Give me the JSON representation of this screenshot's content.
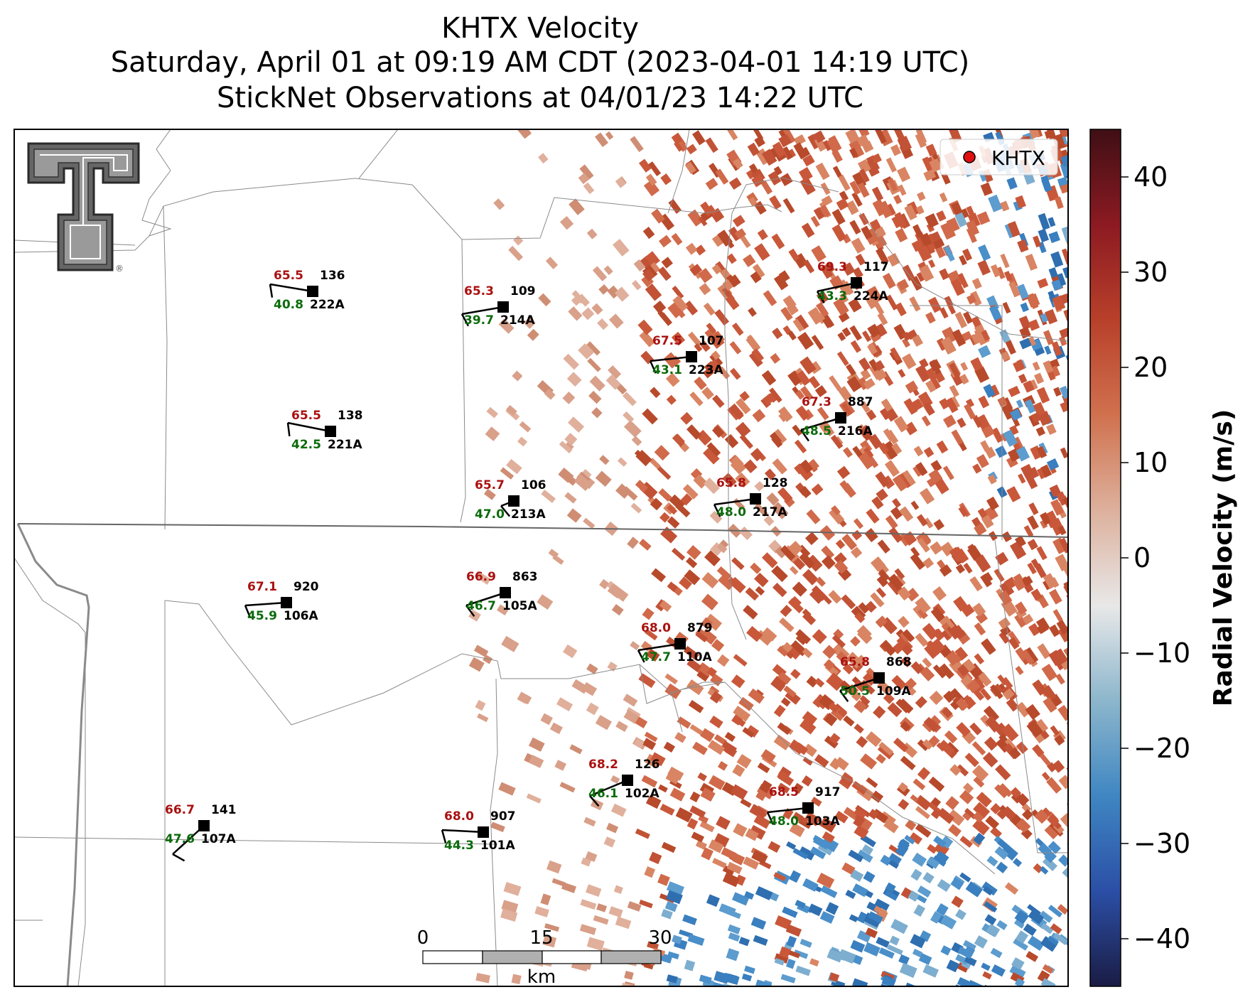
{
  "header": {
    "title_line1": "KHTX Velocity",
    "title_line2": "Saturday, April 01 at 09:19 AM CDT (2023-04-01 14:19 UTC)",
    "title_line3": "StickNet Observations at 04/01/23 14:22 UTC"
  },
  "legend": {
    "label": "KHTX",
    "marker_color": "#e01010"
  },
  "colorbar": {
    "label": "Radial Velocity (m/s)",
    "min": -45,
    "max": 45,
    "ticks": [
      40,
      30,
      20,
      10,
      0,
      -10,
      -20,
      -30,
      -40
    ],
    "tick_labels": [
      "40",
      "30",
      "20",
      "10",
      "0",
      "−10",
      "−20",
      "−30",
      "−40"
    ],
    "colors": [
      "#1a1c44",
      "#2b4fa6",
      "#3f86c2",
      "#8cb6cc",
      "#e8e8e8",
      "#ddb09c",
      "#d0714e",
      "#b8402a",
      "#8c1a22",
      "#3f0f15"
    ]
  },
  "scalebar": {
    "labels": [
      "0",
      "15",
      "30"
    ],
    "unit": "km"
  },
  "logo": {
    "name": "Texas Tech Double T",
    "mark": "®"
  },
  "stations": [
    {
      "id": "222A",
      "temp": "65.5",
      "dew": "40.8",
      "dir": "136"
    },
    {
      "id": "214A",
      "temp": "65.3",
      "dew": "39.7",
      "dir": "109"
    },
    {
      "id": "223A",
      "temp": "67.5",
      "dew": "43.1",
      "dir": "107"
    },
    {
      "id": "224A",
      "temp": "69.3",
      "dew": "43.3",
      "dir": "117"
    },
    {
      "id": "221A",
      "temp": "65.5",
      "dew": "42.5",
      "dir": "138"
    },
    {
      "id": "216A",
      "temp": "67.3",
      "dew": "48.5",
      "dir": "887"
    },
    {
      "id": "213A",
      "temp": "65.7",
      "dew": "47.0",
      "dir": "106"
    },
    {
      "id": "217A",
      "temp": "65.8",
      "dew": "48.0",
      "dir": "128"
    },
    {
      "id": "106A",
      "temp": "67.1",
      "dew": "45.9",
      "dir": "920"
    },
    {
      "id": "105A",
      "temp": "66.9",
      "dew": "46.7",
      "dir": "863"
    },
    {
      "id": "110A",
      "temp": "68.0",
      "dew": "47.7",
      "dir": "879"
    },
    {
      "id": "109A",
      "temp": "65.8",
      "dew": "50.5",
      "dir": "868"
    },
    {
      "id": "102A",
      "temp": "68.2",
      "dew": "46.1",
      "dir": "126"
    },
    {
      "id": "103A",
      "temp": "68.5",
      "dew": "48.0",
      "dir": "917"
    },
    {
      "id": "107A",
      "temp": "66.7",
      "dew": "47.6",
      "dir": "141"
    },
    {
      "id": "101A",
      "temp": "68.0",
      "dew": "44.3",
      "dir": "907"
    }
  ]
}
